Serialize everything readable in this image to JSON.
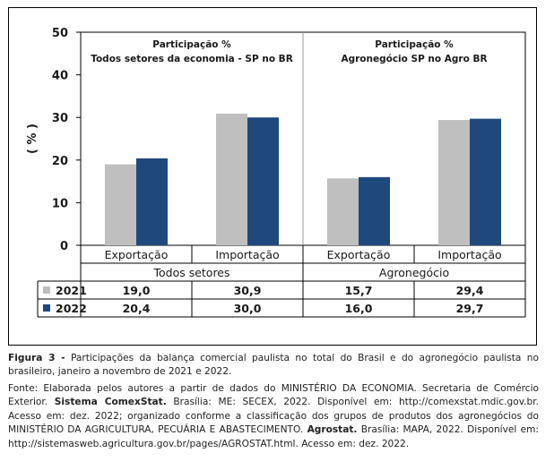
{
  "chart_data": {
    "type": "bar",
    "ylabel": "( % )",
    "ylim": [
      0,
      50
    ],
    "yticks": [
      "0",
      "10",
      "20",
      "30",
      "40",
      "50"
    ],
    "panels": [
      {
        "title_line1": "Participação %",
        "title_line2": "Todos setores da economia - SP no BR",
        "group_label": "Todos setores"
      },
      {
        "title_line1": "Participação %",
        "title_line2": "Agronegócio SP no Agro  BR",
        "group_label": "Agronegócio"
      }
    ],
    "categories": [
      "Exportação",
      "Importação",
      "Exportação",
      "Importação"
    ],
    "series": [
      {
        "name": "2021",
        "color": "#bfbfbf",
        "values": [
          19.0,
          30.9,
          15.7,
          29.4
        ],
        "labels": [
          "19,0",
          "30,9",
          "15,7",
          "29,4"
        ]
      },
      {
        "name": "2022",
        "color": "#1f497d",
        "values": [
          20.4,
          30.0,
          16.0,
          29.7
        ],
        "labels": [
          "20,4",
          "30,0",
          "16,0",
          "29,7"
        ]
      }
    ]
  },
  "caption": {
    "figure_label": "Figura 3 -",
    "figure_text": "Participações da balança comercial paulista no total do Brasil e do agronegócio paulista no brasileiro, janeiro a novembro de 2021 e 2022.",
    "source_a": "Fonte: Elaborada pelos autores a partir de dados do MINISTÉRIO DA ECONOMIA. Secretaria de Comércio Exterior.",
    "sistema": "Sistema ComexStat.",
    "source_b": "Brasília: ME: SECEX, 2022. Disponível em: http://comexstat.mdic.gov.br. Acesso em: dez. 2022; organizado conforme a classificação dos grupos de produtos dos agronegócios do MINISTÉRIO DA AGRICULTURA, PECUÁRIA E ABASTECIMENTO.",
    "agrostat": "Agrostat.",
    "source_c": "Brasília: MAPA, 2022. Disponível em: http://sistemasweb.agricultura.gov.br/pages/AGROSTAT.html. Acesso em: dez. 2022."
  }
}
